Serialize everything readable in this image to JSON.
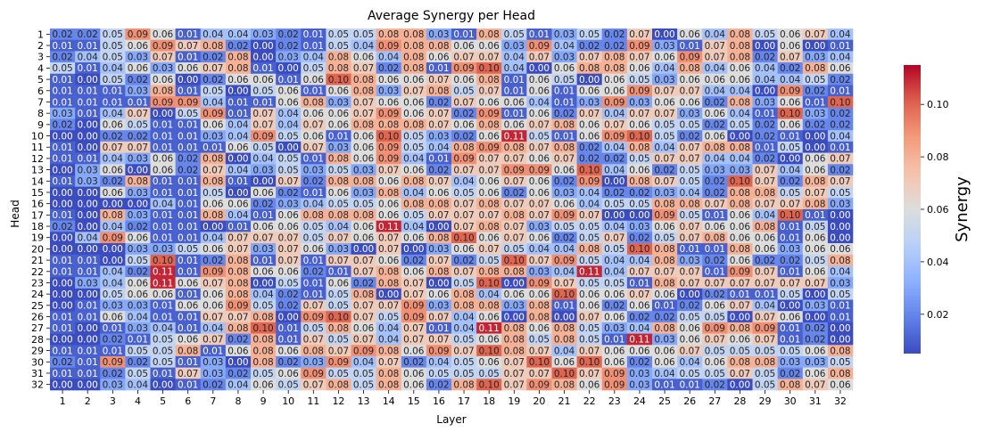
{
  "chart_data": {
    "type": "heatmap",
    "title": "Average Synergy per Head",
    "xlabel": "Layer",
    "ylabel": "Head",
    "x_categories": [
      "1",
      "2",
      "3",
      "4",
      "5",
      "6",
      "7",
      "8",
      "9",
      "10",
      "11",
      "12",
      "13",
      "14",
      "15",
      "16",
      "17",
      "18",
      "19",
      "20",
      "21",
      "22",
      "23",
      "24",
      "25",
      "26",
      "27",
      "28",
      "29",
      "30",
      "31",
      "32"
    ],
    "y_categories": [
      "1",
      "2",
      "3",
      "4",
      "5",
      "6",
      "7",
      "8",
      "9",
      "10",
      "11",
      "12",
      "13",
      "14",
      "15",
      "16",
      "17",
      "18",
      "19",
      "20",
      "21",
      "22",
      "23",
      "24",
      "25",
      "26",
      "27",
      "28",
      "29",
      "30",
      "31",
      "32"
    ],
    "colorbar": {
      "label": "Synergy",
      "min": 0.005,
      "max": 0.115,
      "ticks": [
        0.02,
        0.04,
        0.06,
        0.08,
        0.1
      ],
      "tick_labels": [
        "0.02",
        "0.04",
        "0.06",
        "0.08",
        "0.10"
      ],
      "colormap": "coolwarm"
    },
    "cell_labels_shown": true,
    "values": [
      [
        0.02,
        0.02,
        0.05,
        0.09,
        0.06,
        0.01,
        0.04,
        0.04,
        0.03,
        0.02,
        0.01,
        0.05,
        0.05,
        0.08,
        0.08,
        0.03,
        0.01,
        0.08,
        0.05,
        0.01,
        0.03,
        0.05,
        0.02,
        0.07,
        0.0,
        0.06,
        0.04,
        0.08,
        0.05,
        0.06,
        0.07,
        0.04
      ],
      [
        0.01,
        0.01,
        0.05,
        0.06,
        0.09,
        0.07,
        0.08,
        0.02,
        0.0,
        0.02,
        0.01,
        0.05,
        0.04,
        0.09,
        0.08,
        0.08,
        0.06,
        0.06,
        0.03,
        0.09,
        0.04,
        0.02,
        0.02,
        0.09,
        0.03,
        0.01,
        0.07,
        0.08,
        0.0,
        0.06,
        0.0,
        0.01
      ],
      [
        0.02,
        0.04,
        0.05,
        0.03,
        0.07,
        0.01,
        0.02,
        0.08,
        0.0,
        0.03,
        0.04,
        0.08,
        0.06,
        0.04,
        0.08,
        0.06,
        0.07,
        0.07,
        0.04,
        0.07,
        0.03,
        0.07,
        0.08,
        0.07,
        0.06,
        0.09,
        0.07,
        0.08,
        0.02,
        0.07,
        0.03,
        0.04
      ],
      [
        0.05,
        0.01,
        0.04,
        0.06,
        0.03,
        0.06,
        0.07,
        0.08,
        0.01,
        0.0,
        0.05,
        0.08,
        0.07,
        0.02,
        0.08,
        0.01,
        0.09,
        0.1,
        0.04,
        0.0,
        0.06,
        0.08,
        0.08,
        0.06,
        0.04,
        0.08,
        0.04,
        0.06,
        0.04,
        0.02,
        0.08,
        0.06
      ],
      [
        0.01,
        0.0,
        0.05,
        0.02,
        0.06,
        0.0,
        0.02,
        0.06,
        0.06,
        0.01,
        0.06,
        0.1,
        0.08,
        0.06,
        0.06,
        0.07,
        0.06,
        0.08,
        0.01,
        0.06,
        0.05,
        0.0,
        0.06,
        0.05,
        0.03,
        0.06,
        0.06,
        0.06,
        0.04,
        0.04,
        0.05,
        0.02
      ],
      [
        0.01,
        0.01,
        0.01,
        0.03,
        0.08,
        0.01,
        0.05,
        0.0,
        0.05,
        0.06,
        0.01,
        0.06,
        0.08,
        0.03,
        0.07,
        0.08,
        0.05,
        0.07,
        0.01,
        0.06,
        0.01,
        0.06,
        0.06,
        0.09,
        0.07,
        0.07,
        0.04,
        0.04,
        0.0,
        0.09,
        0.02,
        0.01
      ],
      [
        0.01,
        0.01,
        0.01,
        0.01,
        0.09,
        0.09,
        0.04,
        0.01,
        0.01,
        0.06,
        0.08,
        0.03,
        0.07,
        0.06,
        0.06,
        0.02,
        0.07,
        0.06,
        0.06,
        0.04,
        0.01,
        0.03,
        0.09,
        0.03,
        0.06,
        0.06,
        0.02,
        0.08,
        0.03,
        0.06,
        0.01,
        0.1
      ],
      [
        0.03,
        0.01,
        0.04,
        0.07,
        0.0,
        0.05,
        0.09,
        0.01,
        0.07,
        0.04,
        0.06,
        0.06,
        0.07,
        0.09,
        0.06,
        0.07,
        0.02,
        0.09,
        0.01,
        0.06,
        0.02,
        0.07,
        0.04,
        0.07,
        0.07,
        0.03,
        0.06,
        0.04,
        0.01,
        0.1,
        0.03,
        0.02
      ],
      [
        0.02,
        0.0,
        0.06,
        0.05,
        0.01,
        0.01,
        0.06,
        0.04,
        0.07,
        0.04,
        0.07,
        0.06,
        0.08,
        0.08,
        0.08,
        0.07,
        0.06,
        0.08,
        0.06,
        0.07,
        0.08,
        0.06,
        0.07,
        0.06,
        0.05,
        0.05,
        0.02,
        0.05,
        0.02,
        0.06,
        0.02,
        0.02
      ],
      [
        0.0,
        0.0,
        0.02,
        0.02,
        0.01,
        0.01,
        0.03,
        0.04,
        0.09,
        0.05,
        0.06,
        0.01,
        0.06,
        0.1,
        0.05,
        0.03,
        0.02,
        0.06,
        0.11,
        0.05,
        0.01,
        0.06,
        0.09,
        0.1,
        0.05,
        0.02,
        0.06,
        0.0,
        0.02,
        0.01,
        0.0,
        0.04
      ],
      [
        0.01,
        0.0,
        0.07,
        0.07,
        0.01,
        0.01,
        0.01,
        0.06,
        0.05,
        0.0,
        0.07,
        0.03,
        0.06,
        0.09,
        0.05,
        0.04,
        0.08,
        0.09,
        0.08,
        0.07,
        0.08,
        0.02,
        0.04,
        0.08,
        0.04,
        0.07,
        0.08,
        0.08,
        0.01,
        0.05,
        0.0,
        0.01
      ],
      [
        0.01,
        0.01,
        0.04,
        0.03,
        0.06,
        0.02,
        0.08,
        0.0,
        0.04,
        0.05,
        0.01,
        0.08,
        0.06,
        0.09,
        0.04,
        0.01,
        0.09,
        0.07,
        0.07,
        0.06,
        0.07,
        0.02,
        0.02,
        0.05,
        0.07,
        0.07,
        0.04,
        0.04,
        0.02,
        0.0,
        0.06,
        0.07
      ],
      [
        0.0,
        0.03,
        0.06,
        0.0,
        0.06,
        0.02,
        0.07,
        0.04,
        0.03,
        0.05,
        0.03,
        0.05,
        0.03,
        0.07,
        0.06,
        0.02,
        0.07,
        0.07,
        0.09,
        0.09,
        0.06,
        0.1,
        0.04,
        0.06,
        0.02,
        0.05,
        0.03,
        0.03,
        0.07,
        0.04,
        0.06,
        0.02
      ],
      [
        0.01,
        0.03,
        0.02,
        0.08,
        0.01,
        0.01,
        0.08,
        0.01,
        0.0,
        0.07,
        0.02,
        0.08,
        0.08,
        0.06,
        0.08,
        0.07,
        0.04,
        0.06,
        0.07,
        0.06,
        0.02,
        0.09,
        0.0,
        0.08,
        0.07,
        0.05,
        0.02,
        0.1,
        0.07,
        0.02,
        0.08,
        0.07
      ],
      [
        0.0,
        0.0,
        0.06,
        0.03,
        0.01,
        0.01,
        0.05,
        0.0,
        0.06,
        0.02,
        0.01,
        0.06,
        0.03,
        0.08,
        0.04,
        0.06,
        0.05,
        0.06,
        0.02,
        0.06,
        0.03,
        0.04,
        0.02,
        0.02,
        0.03,
        0.04,
        0.02,
        0.08,
        0.08,
        0.05,
        0.07,
        0.05
      ],
      [
        0.0,
        0.0,
        0.0,
        0.0,
        0.04,
        0.01,
        0.06,
        0.06,
        0.02,
        0.03,
        0.04,
        0.05,
        0.05,
        0.06,
        0.08,
        0.08,
        0.07,
        0.08,
        0.07,
        0.07,
        0.06,
        0.04,
        0.05,
        0.05,
        0.08,
        0.08,
        0.07,
        0.08,
        0.07,
        0.07,
        0.08,
        0.03
      ],
      [
        0.01,
        0.0,
        0.08,
        0.03,
        0.01,
        0.01,
        0.08,
        0.04,
        0.01,
        0.06,
        0.08,
        0.08,
        0.08,
        0.06,
        0.05,
        0.07,
        0.07,
        0.07,
        0.08,
        0.07,
        0.09,
        0.07,
        0.0,
        0.0,
        0.09,
        0.05,
        0.01,
        0.06,
        0.04,
        0.1,
        0.01,
        0.0
      ],
      [
        0.02,
        0.0,
        0.04,
        0.02,
        0.01,
        0.01,
        0.0,
        0.01,
        0.06,
        0.06,
        0.05,
        0.04,
        0.06,
        0.11,
        0.04,
        0.0,
        0.07,
        0.08,
        0.07,
        0.03,
        0.05,
        0.05,
        0.04,
        0.03,
        0.06,
        0.07,
        0.06,
        0.06,
        0.08,
        0.01,
        0.05,
        0.0
      ],
      [
        0.0,
        0.04,
        0.09,
        0.06,
        0.01,
        0.01,
        0.04,
        0.07,
        0.07,
        0.07,
        0.05,
        0.07,
        0.06,
        0.07,
        0.06,
        0.08,
        0.1,
        0.06,
        0.07,
        0.06,
        0.02,
        0.05,
        0.07,
        0.02,
        0.05,
        0.07,
        0.08,
        0.06,
        0.06,
        0.01,
        0.06,
        0.0
      ],
      [
        0.0,
        0.0,
        0.0,
        0.03,
        0.03,
        0.05,
        0.06,
        0.07,
        0.03,
        0.07,
        0.06,
        0.03,
        0.0,
        0.07,
        0.0,
        0.03,
        0.06,
        0.07,
        0.05,
        0.04,
        0.04,
        0.08,
        0.05,
        0.1,
        0.08,
        0.01,
        0.01,
        0.08,
        0.06,
        0.03,
        0.06,
        0.06
      ],
      [
        0.01,
        0.01,
        0.0,
        0.05,
        0.1,
        0.01,
        0.02,
        0.08,
        0.01,
        0.07,
        0.01,
        0.07,
        0.07,
        0.06,
        0.02,
        0.07,
        0.02,
        0.05,
        0.1,
        0.07,
        0.09,
        0.05,
        0.04,
        0.04,
        0.08,
        0.03,
        0.02,
        0.06,
        0.02,
        0.02,
        0.05,
        0.08
      ],
      [
        0.01,
        0.01,
        0.04,
        0.02,
        0.11,
        0.01,
        0.09,
        0.08,
        0.06,
        0.06,
        0.02,
        0.01,
        0.07,
        0.08,
        0.06,
        0.08,
        0.07,
        0.08,
        0.08,
        0.03,
        0.04,
        0.11,
        0.04,
        0.07,
        0.07,
        0.07,
        0.01,
        0.09,
        0.07,
        0.01,
        0.06,
        0.04
      ],
      [
        0.0,
        0.03,
        0.04,
        0.06,
        0.11,
        0.06,
        0.07,
        0.08,
        0.0,
        0.05,
        0.01,
        0.06,
        0.02,
        0.08,
        0.07,
        0.0,
        0.05,
        0.1,
        0.0,
        0.09,
        0.07,
        0.05,
        0.05,
        0.01,
        0.08,
        0.07,
        0.07,
        0.07,
        0.07,
        0.07,
        0.07,
        0.03
      ],
      [
        0.0,
        0.0,
        0.05,
        0.06,
        0.06,
        0.01,
        0.06,
        0.08,
        0.04,
        0.02,
        0.01,
        0.05,
        0.08,
        0.0,
        0.07,
        0.06,
        0.08,
        0.04,
        0.06,
        0.06,
        0.1,
        0.06,
        0.06,
        0.07,
        0.06,
        0.0,
        0.02,
        0.01,
        0.01,
        0.05,
        0.0,
        0.05
      ],
      [
        0.0,
        0.01,
        0.03,
        0.03,
        0.01,
        0.06,
        0.06,
        0.09,
        0.05,
        0.02,
        0.07,
        0.05,
        0.07,
        0.07,
        0.09,
        0.03,
        0.08,
        0.08,
        0.03,
        0.08,
        0.01,
        0.06,
        0.02,
        0.06,
        0.01,
        0.02,
        0.06,
        0.07,
        0.04,
        0.0,
        0.03,
        0.01
      ],
      [
        0.01,
        0.01,
        0.06,
        0.04,
        0.01,
        0.01,
        0.07,
        0.07,
        0.08,
        0.0,
        0.09,
        0.1,
        0.07,
        0.05,
        0.09,
        0.07,
        0.04,
        0.06,
        0.0,
        0.08,
        0.0,
        0.07,
        0.06,
        0.02,
        0.02,
        0.05,
        0.05,
        0.0,
        0.07,
        0.06,
        0.0,
        0.01
      ],
      [
        0.01,
        0.0,
        0.01,
        0.03,
        0.04,
        0.01,
        0.04,
        0.08,
        0.1,
        0.01,
        0.05,
        0.08,
        0.06,
        0.04,
        0.07,
        0.01,
        0.04,
        0.11,
        0.08,
        0.06,
        0.08,
        0.05,
        0.03,
        0.04,
        0.08,
        0.06,
        0.09,
        0.08,
        0.09,
        0.01,
        0.02,
        0.0
      ],
      [
        0.0,
        0.0,
        0.02,
        0.01,
        0.05,
        0.06,
        0.07,
        0.02,
        0.08,
        0.01,
        0.07,
        0.05,
        0.07,
        0.04,
        0.07,
        0.07,
        0.05,
        0.06,
        0.08,
        0.05,
        0.08,
        0.05,
        0.01,
        0.11,
        0.03,
        0.06,
        0.07,
        0.06,
        0.07,
        0.01,
        0.02,
        0.0
      ],
      [
        0.01,
        0.01,
        0.01,
        0.05,
        0.05,
        0.08,
        0.01,
        0.06,
        0.08,
        0.06,
        0.08,
        0.07,
        0.09,
        0.08,
        0.06,
        0.09,
        0.07,
        0.1,
        0.08,
        0.07,
        0.04,
        0.07,
        0.06,
        0.06,
        0.06,
        0.07,
        0.05,
        0.05,
        0.05,
        0.05,
        0.06,
        0.08
      ],
      [
        0.02,
        0.01,
        0.09,
        0.02,
        0.05,
        0.01,
        0.03,
        0.0,
        0.08,
        0.02,
        0.03,
        0.09,
        0.04,
        0.07,
        0.02,
        0.04,
        0.05,
        0.06,
        0.07,
        0.1,
        0.06,
        0.1,
        0.06,
        0.02,
        0.06,
        0.04,
        0.06,
        0.08,
        0.08,
        0.03,
        0.03,
        0.05
      ],
      [
        0.01,
        0.01,
        0.02,
        0.05,
        0.01,
        0.07,
        0.03,
        0.02,
        0.05,
        0.06,
        0.09,
        0.05,
        0.05,
        0.08,
        0.06,
        0.05,
        0.05,
        0.05,
        0.07,
        0.07,
        0.1,
        0.07,
        0.09,
        0.03,
        0.04,
        0.05,
        0.05,
        0.07,
        0.05,
        0.02,
        0.06,
        0.08
      ],
      [
        0.0,
        0.0,
        0.03,
        0.04,
        0.0,
        0.01,
        0.02,
        0.04,
        0.06,
        0.05,
        0.07,
        0.08,
        0.05,
        0.08,
        0.06,
        0.02,
        0.08,
        0.1,
        0.07,
        0.09,
        0.08,
        0.06,
        0.09,
        0.03,
        0.01,
        0.01,
        0.02,
        0.0,
        0.05,
        0.08,
        0.07,
        0.06
      ]
    ]
  }
}
